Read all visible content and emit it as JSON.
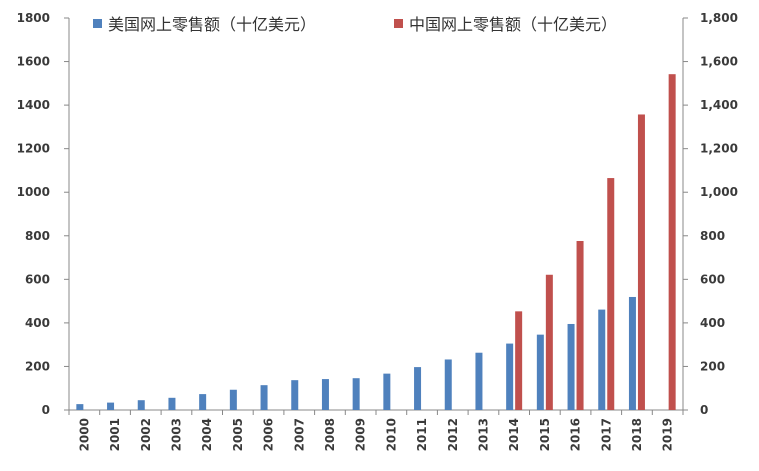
{
  "chart_data": {
    "type": "bar",
    "categories": [
      "2000",
      "2001",
      "2002",
      "2003",
      "2004",
      "2005",
      "2006",
      "2007",
      "2008",
      "2009",
      "2010",
      "2011",
      "2012",
      "2013",
      "2014",
      "2015",
      "2016",
      "2017",
      "2018",
      "2019"
    ],
    "series": [
      {
        "name": "美国网上零售额（十亿美元）",
        "color": "#4f81bd",
        "axis": "left",
        "values": [
          27,
          34,
          45,
          56,
          73,
          93,
          114,
          137,
          142,
          146,
          167,
          197,
          232,
          263,
          305,
          346,
          395,
          461,
          519,
          null
        ]
      },
      {
        "name": "中国网上零售额（十亿美元）",
        "color": "#c0504d",
        "axis": "right",
        "values": [
          null,
          null,
          null,
          null,
          null,
          null,
          null,
          null,
          null,
          null,
          null,
          null,
          null,
          null,
          453,
          621,
          776,
          1065,
          1357,
          1542
        ]
      }
    ],
    "y_left": {
      "ylim": [
        0,
        1800
      ],
      "ticks": [
        "0",
        "200",
        "400",
        "600",
        "800",
        "1000",
        "1200",
        "1400",
        "1600",
        "1800"
      ]
    },
    "y_right": {
      "ylim": [
        0,
        1800
      ],
      "ticks": [
        "0",
        "200",
        "400",
        "600",
        "800",
        "1,000",
        "1,200",
        "1,400",
        "1,600",
        "1,800"
      ]
    },
    "legend_position": "top",
    "grid": false
  }
}
